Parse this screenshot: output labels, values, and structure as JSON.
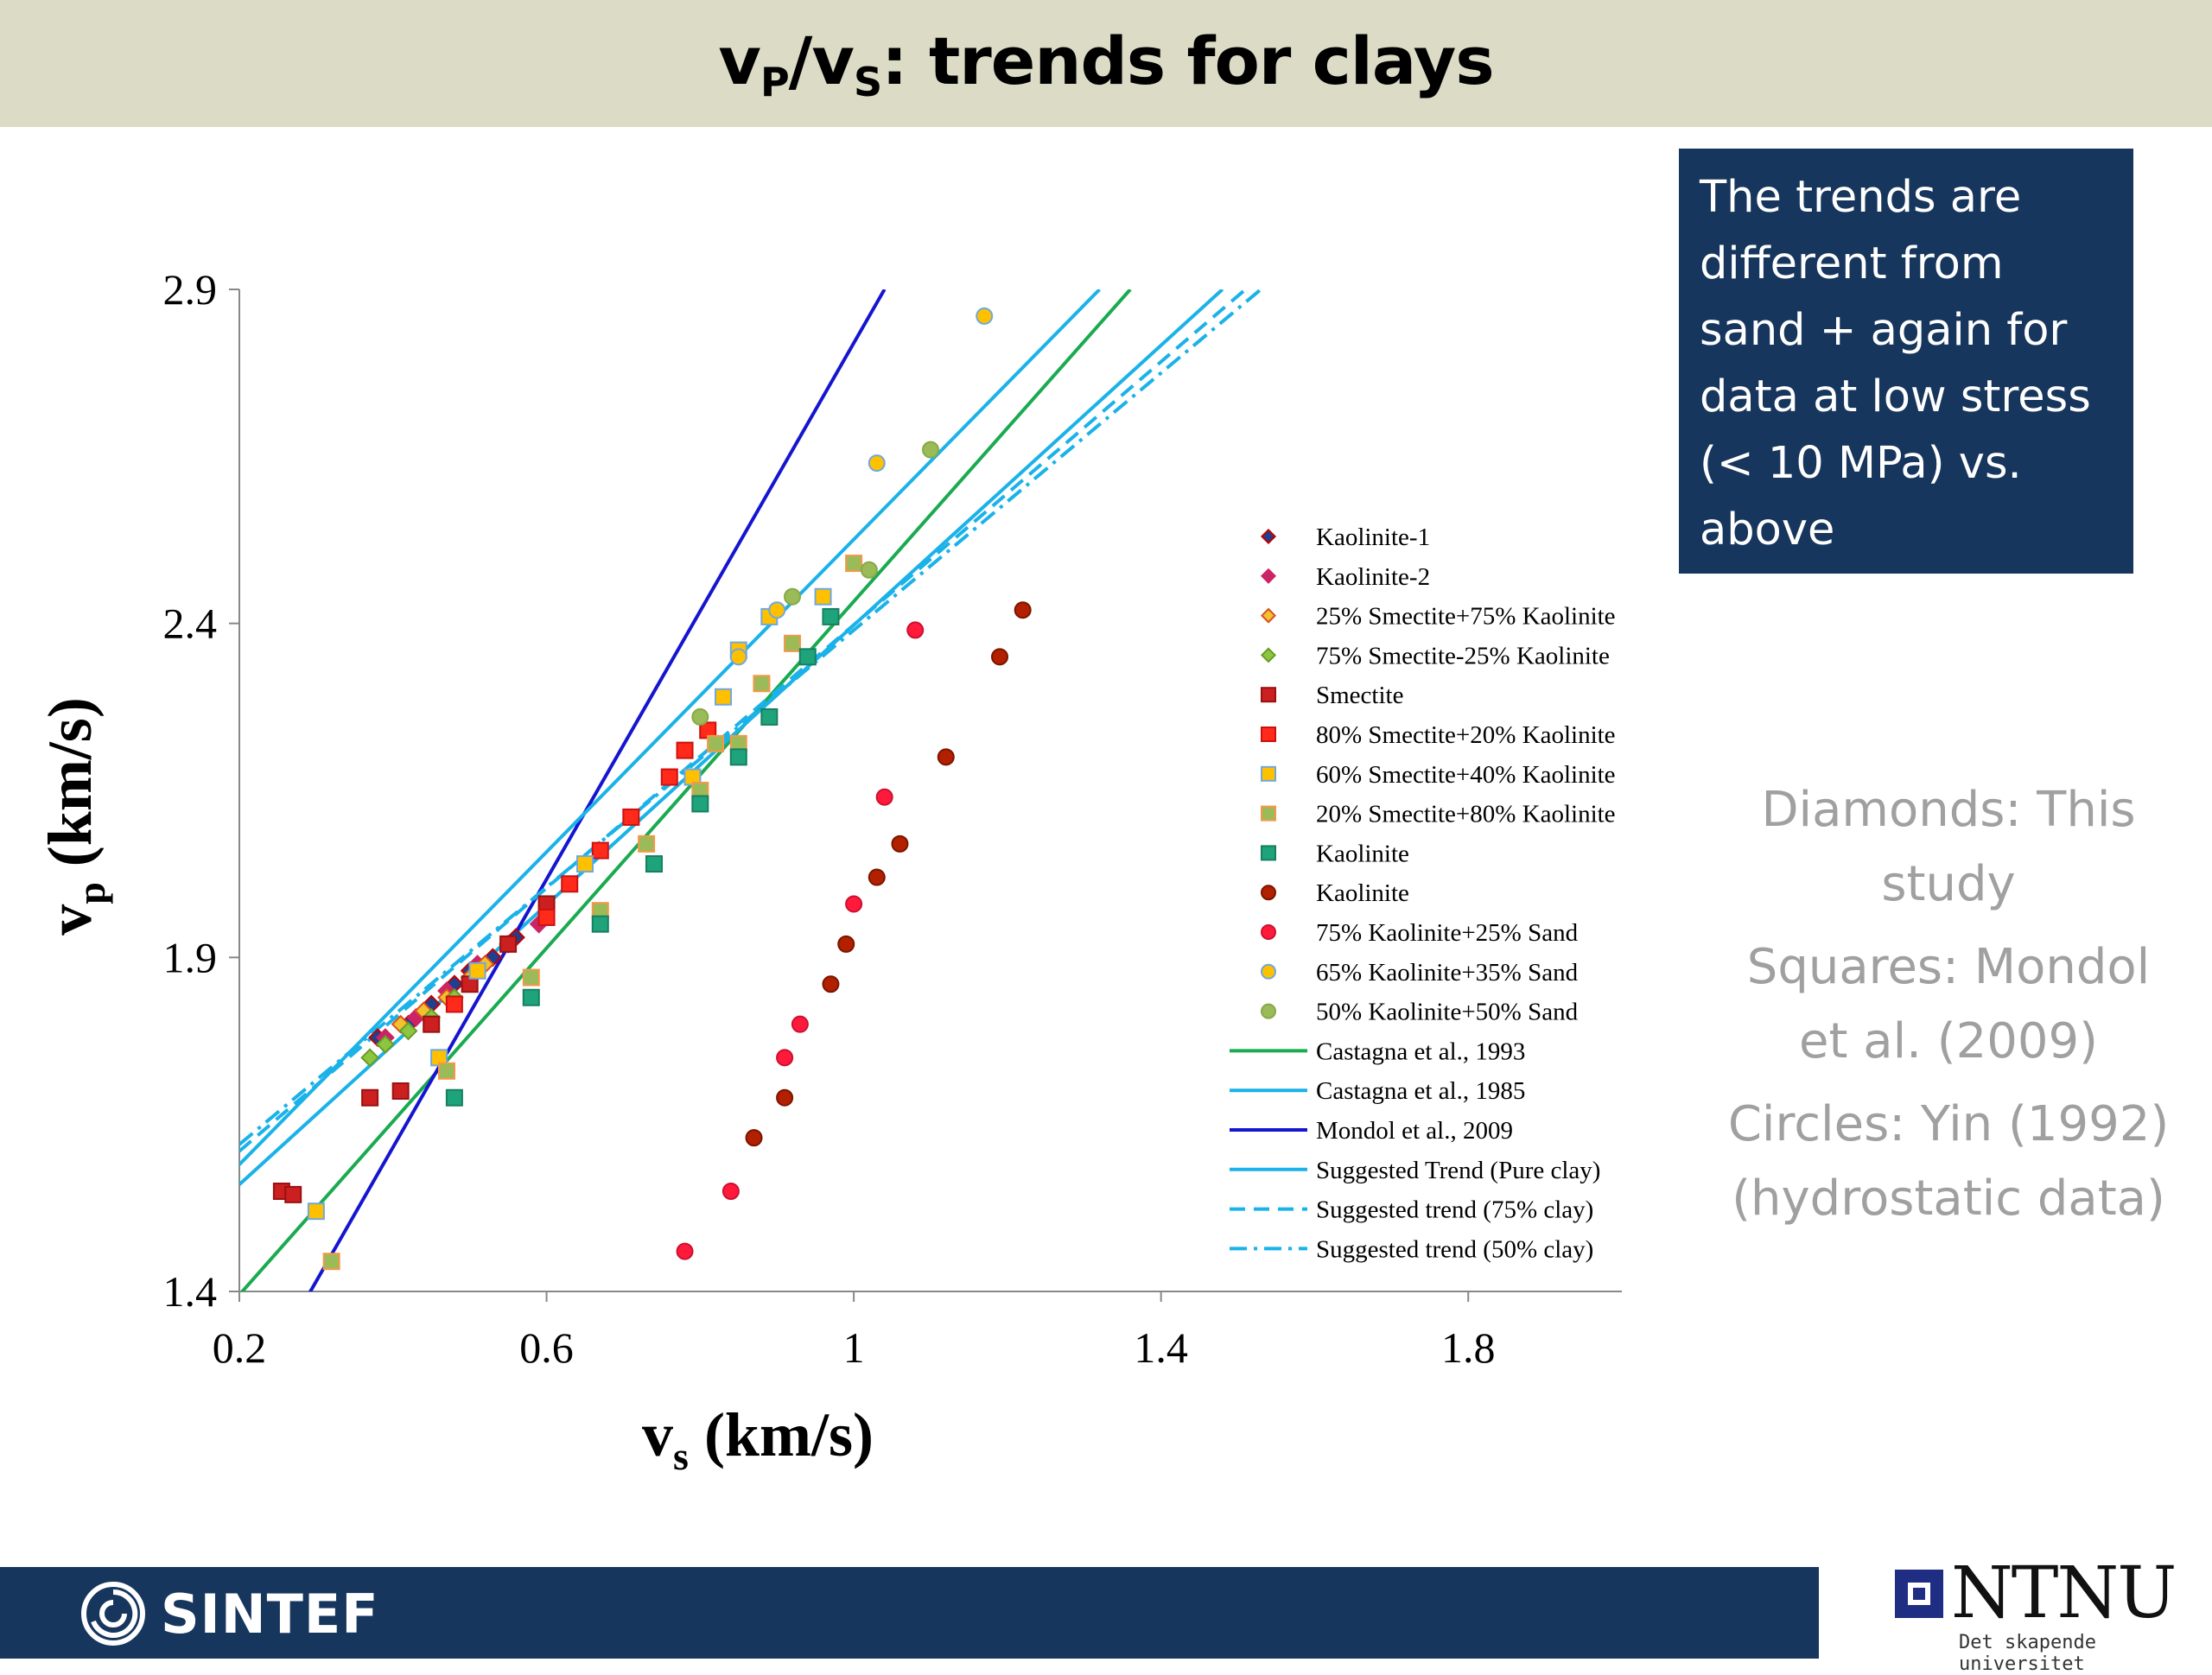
{
  "slide": {
    "title": {
      "main_a": "v",
      "sub_a": "P",
      "slash": "/v",
      "sub_b": "S",
      "rest": ": trends for clays"
    },
    "note_box": "The trends are different from sand + again for data at low stress (< 10 MPa) vs. above",
    "legend_note": {
      "line1": "Diamonds: This study",
      "line2": "Squares: Mondol et al. (2009)",
      "line3": "Circles: Yin (1992) (hydrostatic data)"
    },
    "footer": {
      "sintef": "SINTEF",
      "ntnu": "NTNU",
      "ntnu_tagline": "Det skapende universitet"
    },
    "colors": {
      "title_bar": "#dcdbc6",
      "note_box": "#17365d",
      "footer": "#17365d"
    }
  },
  "chart_data": {
    "type": "scatter",
    "xlabel": {
      "main": "v",
      "sub": "s",
      "rest": " (km/s)"
    },
    "ylabel": {
      "main": "v",
      "sub": "p",
      "rest": " (km/s)"
    },
    "xlim": [
      0.2,
      2.0
    ],
    "ylim": [
      1.4,
      2.9
    ],
    "xticks": [
      0.2,
      0.6,
      1,
      1.4,
      1.8
    ],
    "xtick_labels": [
      "0.2",
      "0.6",
      "1",
      "1.4",
      "1.8"
    ],
    "yticks": [
      1.4,
      1.9,
      2.4,
      2.9
    ],
    "ytick_labels": [
      "1.4",
      "1.9",
      "2.4",
      "2.9"
    ],
    "legend_position": "right",
    "series": [
      {
        "name": "Kaolinite-1",
        "marker": "diamond",
        "fill": "#1f3f8f",
        "stroke": "#c00000",
        "points": [
          [
            0.38,
            1.78
          ],
          [
            0.42,
            1.8
          ],
          [
            0.45,
            1.83
          ],
          [
            0.48,
            1.86
          ],
          [
            0.5,
            1.88
          ],
          [
            0.53,
            1.9
          ],
          [
            0.56,
            1.93
          ]
        ]
      },
      {
        "name": "Kaolinite-2",
        "marker": "diamond",
        "fill": "#cc2266",
        "stroke": "#cc2266",
        "points": [
          [
            0.39,
            1.78
          ],
          [
            0.43,
            1.81
          ],
          [
            0.47,
            1.85
          ],
          [
            0.51,
            1.89
          ],
          [
            0.55,
            1.92
          ],
          [
            0.59,
            1.95
          ]
        ]
      },
      {
        "name": "25% Smectite+75% Kaolinite",
        "marker": "diamond",
        "fill": "#f2c12e",
        "stroke": "#d94f1f",
        "points": [
          [
            0.41,
            1.8
          ],
          [
            0.44,
            1.82
          ],
          [
            0.47,
            1.84
          ],
          [
            0.5,
            1.87
          ],
          [
            0.52,
            1.89
          ]
        ]
      },
      {
        "name": "75% Smectite-25% Kaolinite",
        "marker": "diamond",
        "fill": "#8cc63f",
        "stroke": "#6a9a2a",
        "points": [
          [
            0.37,
            1.75
          ],
          [
            0.39,
            1.77
          ],
          [
            0.42,
            1.79
          ],
          [
            0.45,
            1.81
          ],
          [
            0.48,
            1.84
          ]
        ]
      },
      {
        "name": "Smectite",
        "marker": "square",
        "fill": "#cc1f1f",
        "stroke": "#991111",
        "points": [
          [
            0.255,
            1.55
          ],
          [
            0.27,
            1.545
          ],
          [
            0.37,
            1.69
          ],
          [
            0.41,
            1.7
          ],
          [
            0.45,
            1.8
          ],
          [
            0.5,
            1.86
          ],
          [
            0.55,
            1.92
          ],
          [
            0.6,
            1.98
          ]
        ]
      },
      {
        "name": "80% Smectite+20% Kaolinite",
        "marker": "square",
        "fill": "#ff2a1a",
        "stroke": "#cc1111",
        "points": [
          [
            0.48,
            1.83
          ],
          [
            0.6,
            1.96
          ],
          [
            0.63,
            2.01
          ],
          [
            0.67,
            2.06
          ],
          [
            0.71,
            2.11
          ],
          [
            0.76,
            2.17
          ],
          [
            0.78,
            2.21
          ],
          [
            0.81,
            2.24
          ]
        ]
      },
      {
        "name": "60% Smectite+40% Kaolinite",
        "marker": "square",
        "fill": "#ffc000",
        "stroke": "#6fa8dc",
        "points": [
          [
            0.3,
            1.52
          ],
          [
            0.46,
            1.75
          ],
          [
            0.51,
            1.88
          ],
          [
            0.65,
            2.04
          ],
          [
            0.79,
            2.17
          ],
          [
            0.83,
            2.29
          ],
          [
            0.85,
            2.36
          ],
          [
            0.89,
            2.41
          ],
          [
            0.96,
            2.44
          ]
        ]
      },
      {
        "name": "20% Smectite+80% Kaolinite",
        "marker": "square",
        "fill": "#9bbb59",
        "stroke": "#f79646",
        "points": [
          [
            0.32,
            1.445
          ],
          [
            0.47,
            1.73
          ],
          [
            0.58,
            1.87
          ],
          [
            0.67,
            1.97
          ],
          [
            0.73,
            2.07
          ],
          [
            0.8,
            2.15
          ],
          [
            0.82,
            2.22
          ],
          [
            0.85,
            2.22
          ],
          [
            0.88,
            2.31
          ],
          [
            0.92,
            2.37
          ],
          [
            1.0,
            2.49
          ]
        ]
      },
      {
        "name": "Kaolinite",
        "marker": "square",
        "fill": "#1fa37a",
        "stroke": "#158060",
        "points": [
          [
            0.48,
            1.69
          ],
          [
            0.58,
            1.84
          ],
          [
            0.67,
            1.95
          ],
          [
            0.74,
            2.04
          ],
          [
            0.8,
            2.13
          ],
          [
            0.85,
            2.2
          ],
          [
            0.89,
            2.26
          ],
          [
            0.94,
            2.35
          ],
          [
            0.97,
            2.41
          ]
        ]
      },
      {
        "name": "Kaolinite",
        "marker": "circle",
        "fill": "#b22000",
        "stroke": "#7a1500",
        "points": [
          [
            0.87,
            1.63
          ],
          [
            0.91,
            1.69
          ],
          [
            0.97,
            1.86
          ],
          [
            0.99,
            1.92
          ],
          [
            1.03,
            2.02
          ],
          [
            1.06,
            2.07
          ],
          [
            1.12,
            2.2
          ],
          [
            1.19,
            2.35
          ],
          [
            1.22,
            2.42
          ]
        ]
      },
      {
        "name": "75% Kaolinite+25% Sand",
        "marker": "circle",
        "fill": "#ff1a3c",
        "stroke": "#cc1030",
        "points": [
          [
            0.78,
            1.46
          ],
          [
            0.84,
            1.55
          ],
          [
            0.91,
            1.75
          ],
          [
            0.93,
            1.8
          ],
          [
            1.0,
            1.98
          ],
          [
            1.04,
            2.14
          ],
          [
            1.08,
            2.39
          ]
        ]
      },
      {
        "name": "65% Kaolinite+35% Sand",
        "marker": "circle",
        "fill": "#ffc000",
        "stroke": "#6fa8dc",
        "points": [
          [
            0.85,
            2.35
          ],
          [
            0.9,
            2.42
          ],
          [
            1.03,
            2.64
          ],
          [
            1.17,
            2.86
          ]
        ]
      },
      {
        "name": "50% Kaolinite+50% Sand",
        "marker": "circle",
        "fill": "#9bbb59",
        "stroke": "#88a84a",
        "points": [
          [
            0.8,
            2.26
          ],
          [
            0.92,
            2.44
          ],
          [
            1.02,
            2.48
          ],
          [
            1.1,
            2.66
          ]
        ]
      },
      {
        "name": "Castagna et al., 1993",
        "marker": "line",
        "stroke": "#1aaa50",
        "dash": "solid",
        "points": [
          [
            0.2,
            1.395
          ],
          [
            1.36,
            2.9
          ]
        ]
      },
      {
        "name": "Castagna et al., 1985",
        "marker": "line",
        "stroke": "#1ab2e8",
        "dash": "solid",
        "points": [
          [
            0.2,
            1.56
          ],
          [
            1.48,
            2.9
          ]
        ]
      },
      {
        "name": "Mondol et al., 2009",
        "marker": "line",
        "stroke": "#1515d0",
        "dash": "solid",
        "points": [
          [
            0.29,
            1.395
          ],
          [
            1.04,
            2.9
          ]
        ]
      },
      {
        "name": "Suggested Trend (Pure clay)",
        "marker": "line",
        "stroke": "#1ab2e8",
        "dash": "solid",
        "points": [
          [
            0.2,
            1.59
          ],
          [
            1.32,
            2.9
          ]
        ]
      },
      {
        "name": "Suggested trend (75% clay)",
        "marker": "line",
        "stroke": "#1ab2e8",
        "dash": "dashed",
        "points": [
          [
            0.2,
            1.61
          ],
          [
            1.51,
            2.9
          ]
        ]
      },
      {
        "name": "Suggested trend (50% clay)",
        "marker": "line",
        "stroke": "#1ab2e8",
        "dash": "dashdot",
        "points": [
          [
            0.2,
            1.62
          ],
          [
            1.53,
            2.9
          ]
        ]
      }
    ]
  }
}
